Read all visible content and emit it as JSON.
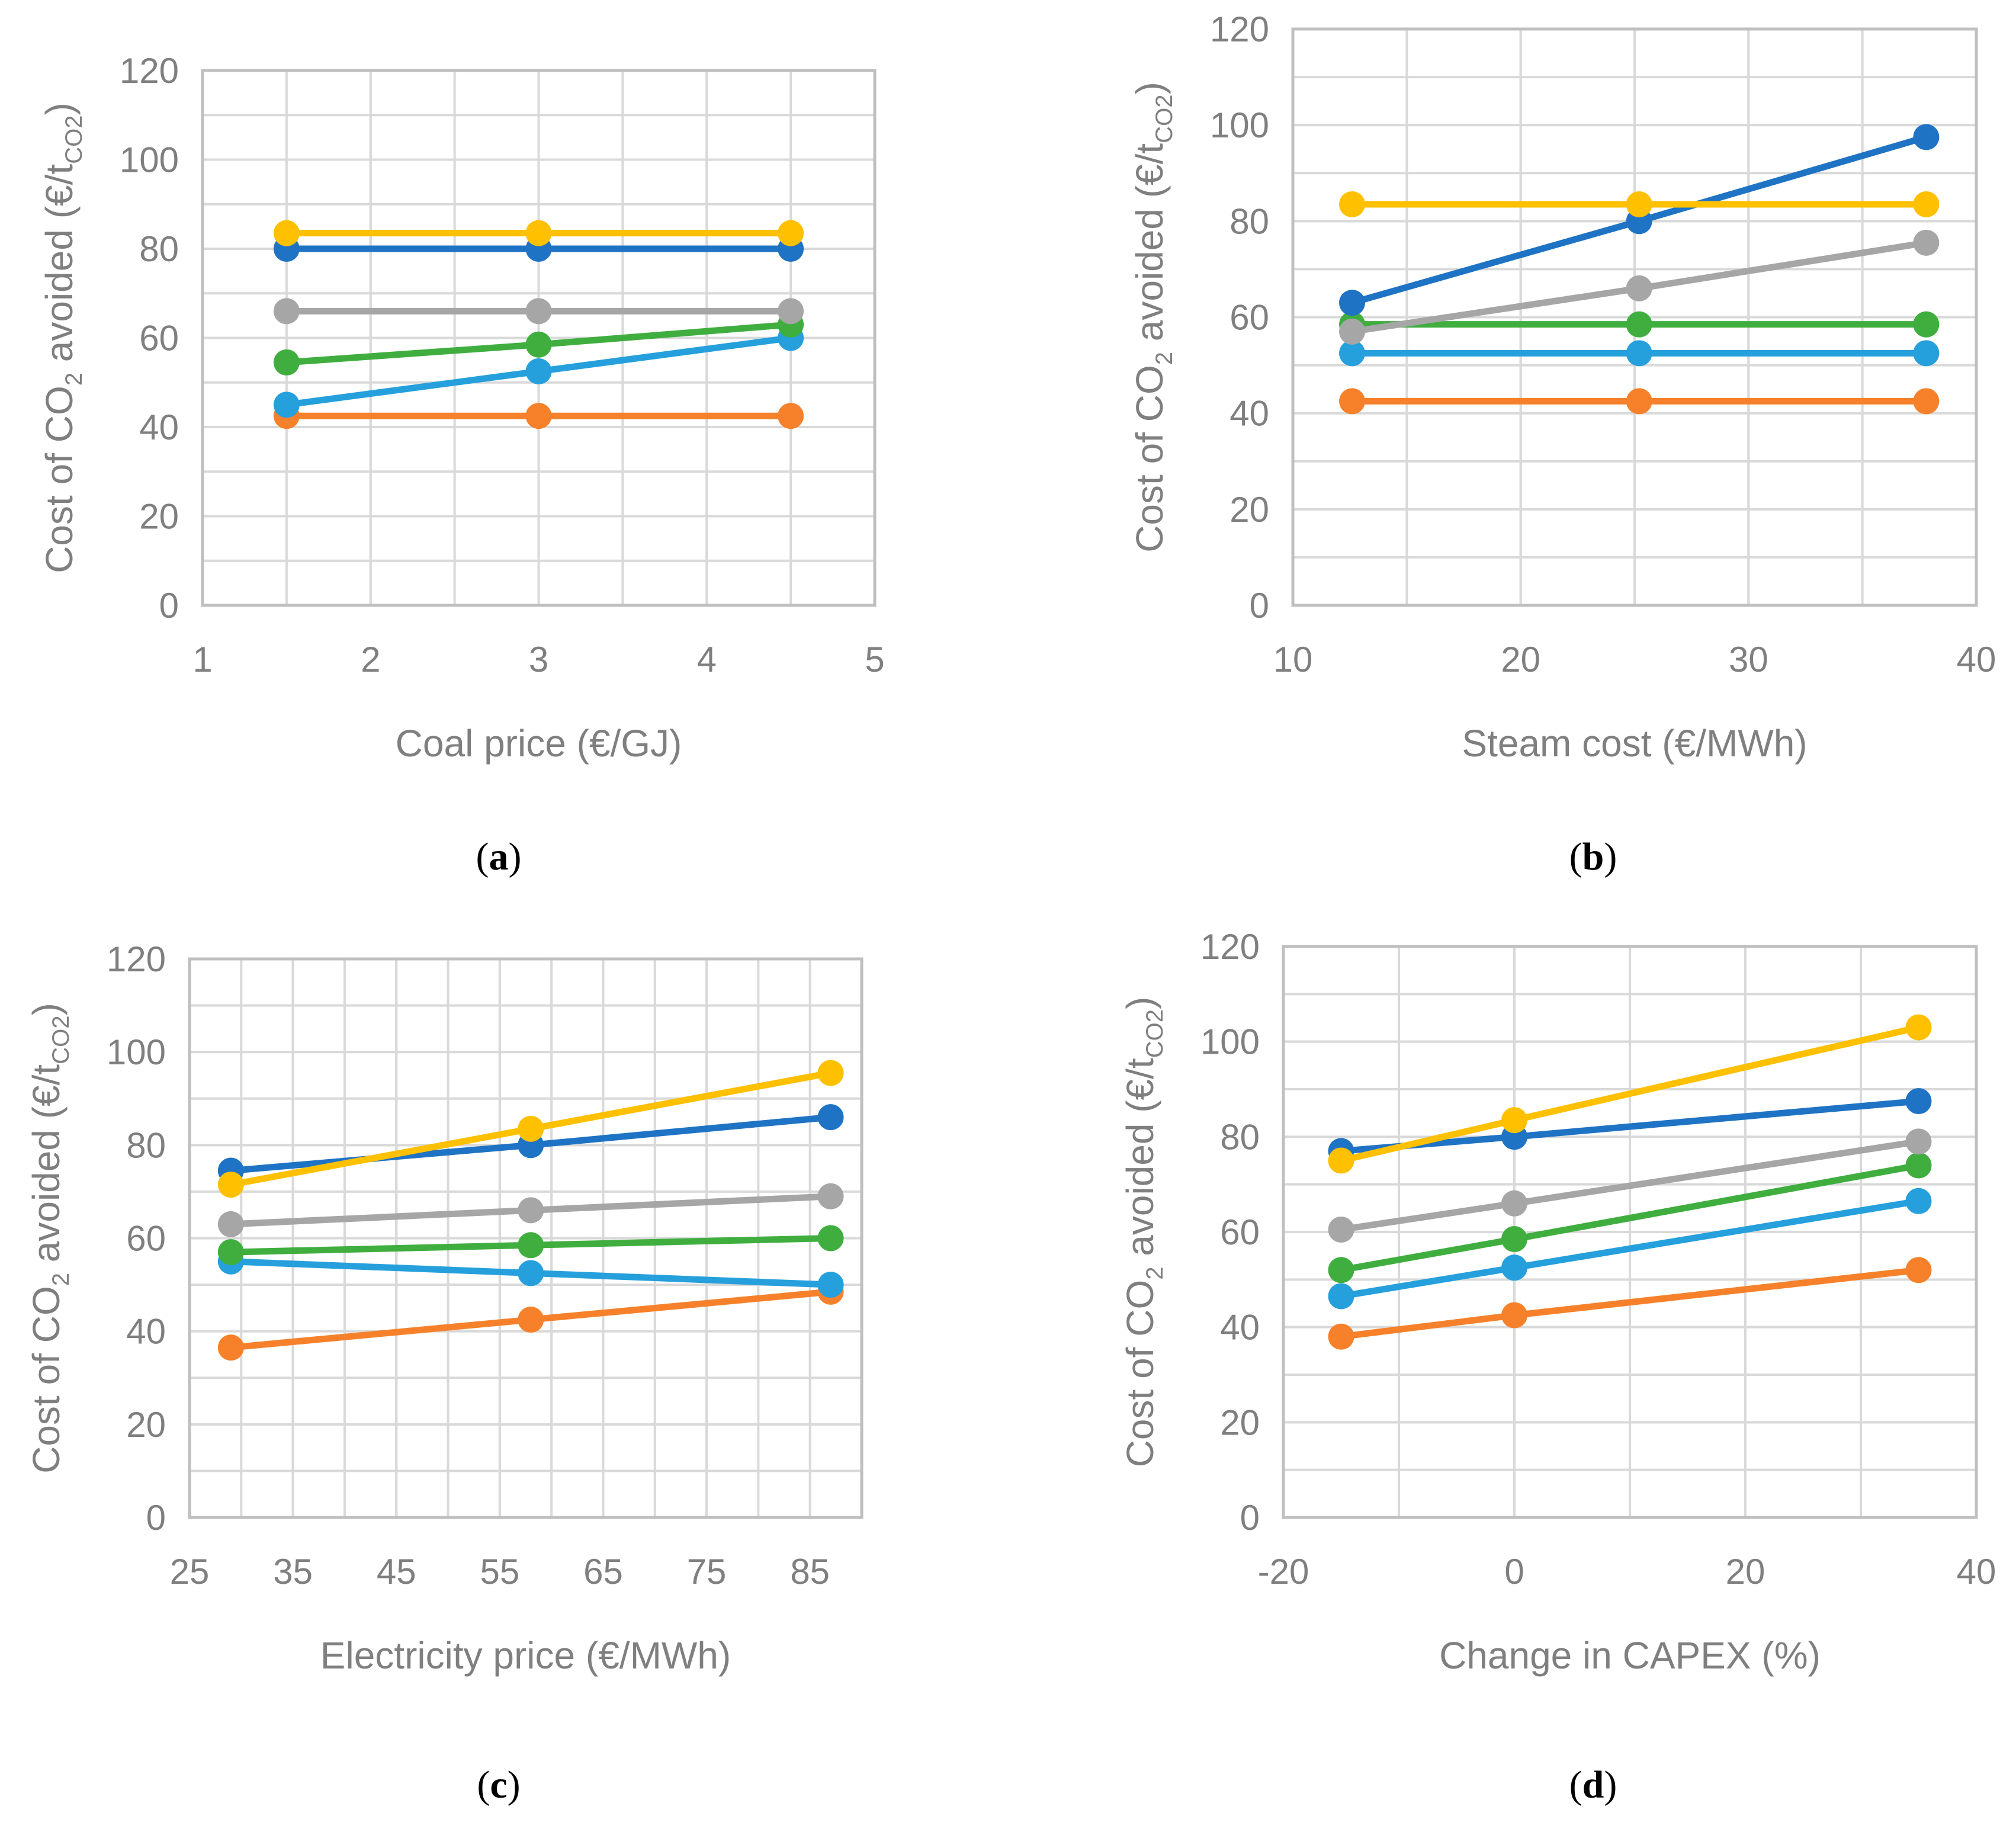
{
  "colors": {
    "blue": "#1f73c4",
    "orange": "#f6812a",
    "gray": "#a6a6a6",
    "yellow": "#ffc000",
    "lightblue": "#25a0dc",
    "green": "#3fae3f",
    "tick": "#7f7f7f"
  },
  "chart_data": [
    {
      "type": "line",
      "panel_label": "a",
      "xlabel": "Coal price (€/GJ)",
      "ylabel_prefix": "Cost of CO",
      "ylabel_sub": "2",
      "ylabel_mid": " avoided (€/t",
      "ylabel_sub2": "CO2",
      "ylabel_suffix": ")",
      "xlim": [
        1,
        5
      ],
      "xticks": [
        1,
        2,
        3,
        4,
        5
      ],
      "ylim": [
        0,
        120
      ],
      "yticks": [
        0,
        20,
        40,
        60,
        80,
        100,
        120
      ],
      "grid": true,
      "x": [
        1.5,
        3,
        4.5
      ],
      "series": [
        {
          "color": "orange",
          "values": [
            42.5,
            42.5,
            42.5
          ]
        },
        {
          "color": "lightblue",
          "values": [
            45,
            52.5,
            60
          ]
        },
        {
          "color": "green",
          "values": [
            54.5,
            58.5,
            63
          ]
        },
        {
          "color": "gray",
          "values": [
            66,
            66,
            66
          ]
        },
        {
          "color": "blue",
          "values": [
            80,
            80,
            80
          ]
        },
        {
          "color": "yellow",
          "values": [
            83.5,
            83.5,
            83.5
          ]
        }
      ]
    },
    {
      "type": "line",
      "panel_label": "b",
      "xlabel": "Steam cost (€/MWh)",
      "ylabel_prefix": "Cost of CO",
      "ylabel_sub": "2",
      "ylabel_mid": " avoided (€/t",
      "ylabel_sub2": "CO2",
      "ylabel_suffix": ")",
      "xlim": [
        10,
        40
      ],
      "xticks": [
        10,
        20,
        30,
        40
      ],
      "ylim": [
        0,
        120
      ],
      "yticks": [
        0,
        20,
        40,
        60,
        80,
        100,
        120
      ],
      "grid": true,
      "x": [
        12.6,
        25.2,
        37.8
      ],
      "series": [
        {
          "color": "orange",
          "values": [
            42.5,
            42.5,
            42.5
          ]
        },
        {
          "color": "lightblue",
          "values": [
            52.5,
            52.5,
            52.5
          ]
        },
        {
          "color": "green",
          "values": [
            58.5,
            58.5,
            58.5
          ]
        },
        {
          "color": "gray",
          "values": [
            57,
            66,
            75.5
          ]
        },
        {
          "color": "blue",
          "values": [
            63,
            80,
            97.5
          ]
        },
        {
          "color": "yellow",
          "values": [
            83.5,
            83.5,
            83.5
          ]
        }
      ]
    },
    {
      "type": "line",
      "panel_label": "c",
      "xlabel": "Electricity price (€/MWh)",
      "ylabel_prefix": "Cost of CO",
      "ylabel_sub": "2",
      "ylabel_mid": " avoided (€/t",
      "ylabel_sub2": "CO2",
      "ylabel_suffix": ")",
      "xlim": [
        25,
        90
      ],
      "xticks": [
        25,
        35,
        45,
        55,
        65,
        75,
        85
      ],
      "ylim": [
        0,
        120
      ],
      "yticks": [
        0,
        20,
        40,
        60,
        80,
        100,
        120
      ],
      "grid": true,
      "x": [
        29,
        58,
        87
      ],
      "series": [
        {
          "color": "orange",
          "values": [
            36.5,
            42.5,
            48.5
          ]
        },
        {
          "color": "lightblue",
          "values": [
            55,
            52.5,
            50
          ]
        },
        {
          "color": "green",
          "values": [
            57,
            58.5,
            60
          ]
        },
        {
          "color": "gray",
          "values": [
            63,
            66,
            69
          ]
        },
        {
          "color": "blue",
          "values": [
            74.5,
            80,
            86
          ]
        },
        {
          "color": "yellow",
          "values": [
            71.5,
            83.5,
            95.5
          ]
        }
      ]
    },
    {
      "type": "line",
      "panel_label": "d",
      "xlabel": "Change in CAPEX (%)",
      "ylabel_prefix": "Cost of CO",
      "ylabel_sub": "2",
      "ylabel_mid": " avoided (€/t",
      "ylabel_sub2": "CO2",
      "ylabel_suffix": ")",
      "xlim": [
        -20,
        40
      ],
      "xticks": [
        -20,
        0,
        20,
        40
      ],
      "ylim": [
        0,
        120
      ],
      "yticks": [
        0,
        20,
        40,
        60,
        80,
        100,
        120
      ],
      "grid": true,
      "x": [
        -15,
        0,
        35
      ],
      "series": [
        {
          "color": "orange",
          "values": [
            38,
            42.5,
            52
          ]
        },
        {
          "color": "lightblue",
          "values": [
            46.5,
            52.5,
            66.5
          ]
        },
        {
          "color": "green",
          "values": [
            52,
            58.5,
            74
          ]
        },
        {
          "color": "gray",
          "values": [
            60.5,
            66,
            79
          ]
        },
        {
          "color": "blue",
          "values": [
            77,
            80,
            87.5
          ]
        },
        {
          "color": "yellow",
          "values": [
            75,
            83.5,
            103
          ]
        }
      ]
    }
  ]
}
